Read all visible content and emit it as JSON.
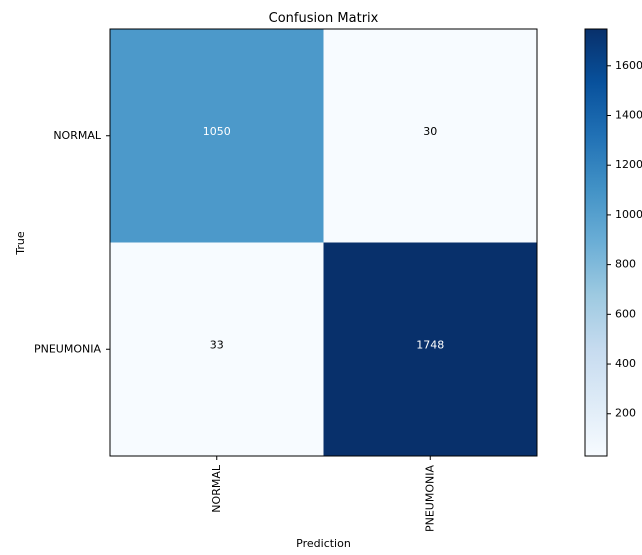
{
  "chart_data": {
    "type": "heatmap",
    "title": "Confusion Matrix",
    "xlabel": "Prediction",
    "ylabel": "True",
    "x_categories": [
      "NORMAL",
      "PNEUMONIA"
    ],
    "y_categories": [
      "NORMAL",
      "PNEUMONIA"
    ],
    "matrix": [
      [
        1050,
        30
      ],
      [
        33,
        1748
      ]
    ],
    "colormap": "Blues",
    "colorbar": {
      "min": 30,
      "max": 1748,
      "ticks": [
        200,
        400,
        600,
        800,
        1000,
        1200,
        1400,
        1600
      ]
    },
    "grid": false
  }
}
